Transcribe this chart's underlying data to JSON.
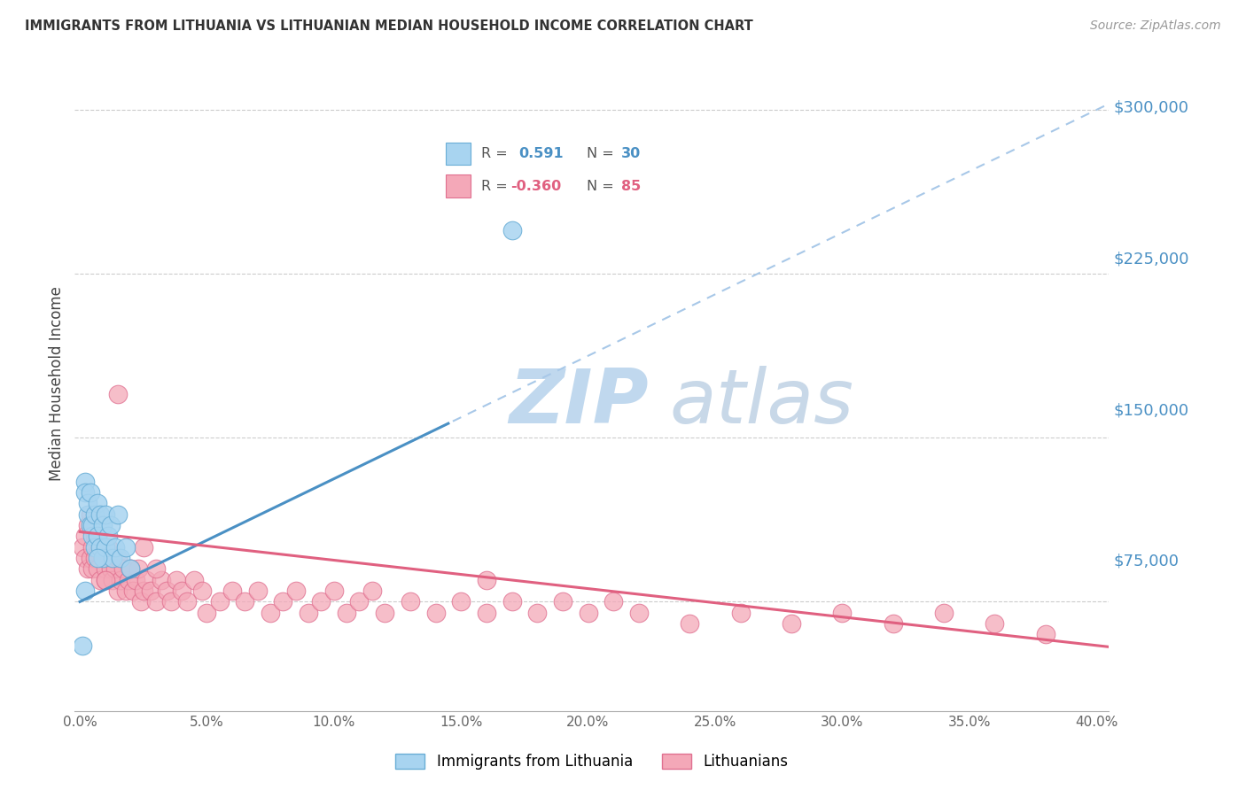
{
  "title": "IMMIGRANTS FROM LITHUANIA VS LITHUANIAN MEDIAN HOUSEHOLD INCOME CORRELATION CHART",
  "source": "Source: ZipAtlas.com",
  "ylabel": "Median Household Income",
  "yticks": [
    0,
    75000,
    150000,
    225000,
    300000
  ],
  "ytick_labels": [
    "",
    "$75,000",
    "$150,000",
    "$225,000",
    "$300,000"
  ],
  "xlim": [
    -0.002,
    0.405
  ],
  "ylim": [
    25000,
    325000
  ],
  "blue_R": 0.591,
  "blue_N": 30,
  "pink_R": -0.36,
  "pink_N": 85,
  "blue_color": "#A8D4F0",
  "blue_edge_color": "#6AAED6",
  "blue_line_color": "#4A90C4",
  "pink_color": "#F4A8B8",
  "pink_edge_color": "#E07090",
  "pink_line_color": "#E06080",
  "dashed_line_color": "#A8C8E8",
  "watermark_zip_color": "#C0D8EE",
  "watermark_atlas_color": "#C8D8E8",
  "legend_label_blue": "Immigrants from Lithuania",
  "legend_label_pink": "Lithuanians",
  "blue_x": [
    0.001,
    0.002,
    0.002,
    0.003,
    0.003,
    0.004,
    0.004,
    0.005,
    0.005,
    0.006,
    0.006,
    0.007,
    0.007,
    0.008,
    0.008,
    0.009,
    0.009,
    0.01,
    0.01,
    0.011,
    0.012,
    0.013,
    0.014,
    0.015,
    0.016,
    0.018,
    0.02,
    0.17,
    0.002,
    0.007
  ],
  "blue_y": [
    55000,
    130000,
    125000,
    115000,
    120000,
    110000,
    125000,
    105000,
    110000,
    115000,
    100000,
    120000,
    105000,
    115000,
    100000,
    110000,
    95000,
    115000,
    100000,
    105000,
    110000,
    95000,
    100000,
    115000,
    95000,
    100000,
    90000,
    245000,
    80000,
    95000
  ],
  "pink_x": [
    0.001,
    0.002,
    0.002,
    0.003,
    0.003,
    0.004,
    0.004,
    0.005,
    0.005,
    0.006,
    0.006,
    0.007,
    0.007,
    0.008,
    0.008,
    0.009,
    0.01,
    0.01,
    0.011,
    0.012,
    0.012,
    0.013,
    0.014,
    0.015,
    0.015,
    0.016,
    0.017,
    0.018,
    0.019,
    0.02,
    0.021,
    0.022,
    0.023,
    0.024,
    0.025,
    0.026,
    0.028,
    0.03,
    0.032,
    0.034,
    0.036,
    0.038,
    0.04,
    0.042,
    0.045,
    0.048,
    0.05,
    0.055,
    0.06,
    0.065,
    0.07,
    0.075,
    0.08,
    0.085,
    0.09,
    0.095,
    0.1,
    0.105,
    0.11,
    0.115,
    0.12,
    0.13,
    0.14,
    0.15,
    0.16,
    0.17,
    0.18,
    0.19,
    0.2,
    0.21,
    0.22,
    0.24,
    0.26,
    0.28,
    0.3,
    0.32,
    0.34,
    0.36,
    0.38,
    0.01,
    0.015,
    0.02,
    0.025,
    0.03,
    0.16
  ],
  "pink_y": [
    100000,
    95000,
    105000,
    90000,
    110000,
    95000,
    115000,
    100000,
    90000,
    105000,
    95000,
    90000,
    105000,
    100000,
    85000,
    95000,
    90000,
    85000,
    100000,
    90000,
    95000,
    85000,
    90000,
    80000,
    95000,
    85000,
    90000,
    80000,
    85000,
    90000,
    80000,
    85000,
    90000,
    75000,
    80000,
    85000,
    80000,
    75000,
    85000,
    80000,
    75000,
    85000,
    80000,
    75000,
    85000,
    80000,
    70000,
    75000,
    80000,
    75000,
    80000,
    70000,
    75000,
    80000,
    70000,
    75000,
    80000,
    70000,
    75000,
    80000,
    70000,
    75000,
    70000,
    75000,
    70000,
    75000,
    70000,
    75000,
    70000,
    75000,
    70000,
    65000,
    70000,
    65000,
    70000,
    65000,
    70000,
    65000,
    60000,
    85000,
    170000,
    90000,
    100000,
    90000,
    85000
  ]
}
